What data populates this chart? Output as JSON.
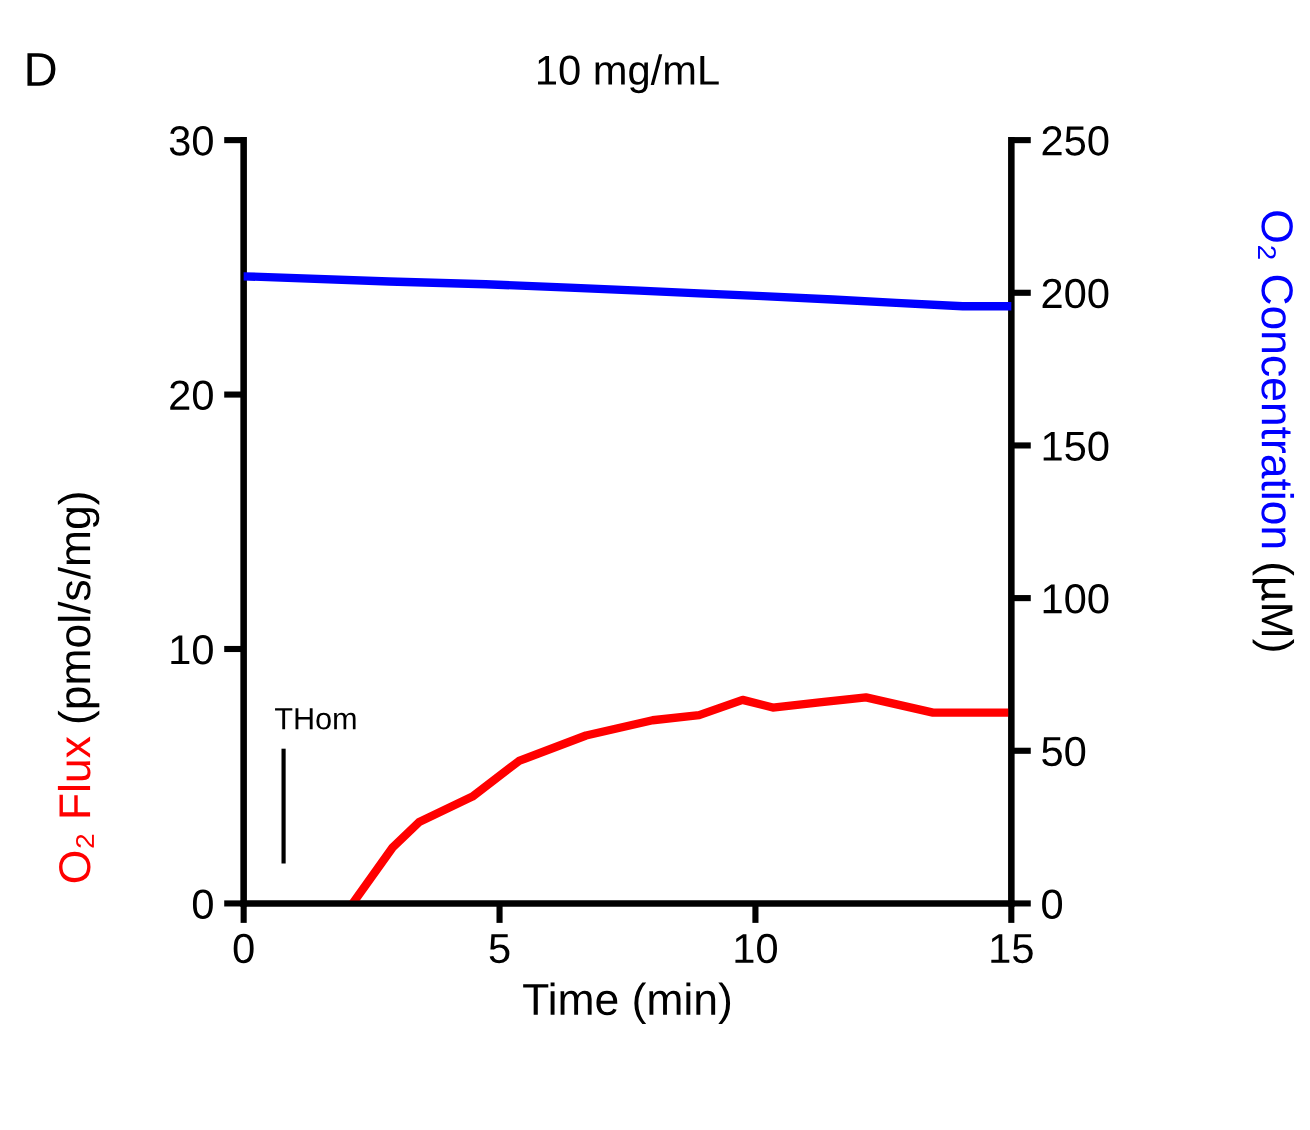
{
  "chart_data": {
    "type": "line",
    "title": "10 mg/mL",
    "xlabel": "Time (min)",
    "ylabel": "(pmol/s/mg)",
    "y2label": "(µM)",
    "annotations": [
      "D",
      "THom"
    ],
    "xlim": [
      0,
      15
    ],
    "xticks": [
      0,
      5,
      10,
      15
    ],
    "ylim": [
      0,
      30
    ],
    "yticks": [
      0,
      10,
      20,
      30
    ],
    "y2lim": [
      0,
      250
    ],
    "y2ticks": [
      0,
      50,
      100,
      150,
      200,
      250
    ],
    "grid": false,
    "legend": false,
    "marker": "none",
    "line_style": "solid",
    "series": [
      {
        "name": "O₂ Flux",
        "color": "#ff0000",
        "x": [
          2.13,
          2.91,
          3.43,
          4.47,
          5.38,
          6.69,
          7.99,
          8.9,
          9.75,
          10.34,
          11.25,
          12.16,
          13.47,
          14.97
        ],
        "values": [
          0,
          2.2,
          3.2,
          4.2,
          5.6,
          6.6,
          7.2,
          7.4,
          8.0,
          7.7,
          7.9,
          8.1,
          7.5,
          7.5
        ]
      },
      {
        "name": "O₂ Concentration",
        "color": "#0000ff",
        "axis": "y2",
        "x": [
          0,
          2.84,
          4.73,
          6.36,
          7.73,
          8.9,
          10.14,
          11.51,
          12.75,
          14.05,
          14.97
        ],
        "values": [
          205.4,
          203.7,
          202.8,
          201.7,
          200.7,
          199.8,
          198.9,
          197.8,
          196.7,
          195.6,
          195.6
        ]
      }
    ]
  }
}
